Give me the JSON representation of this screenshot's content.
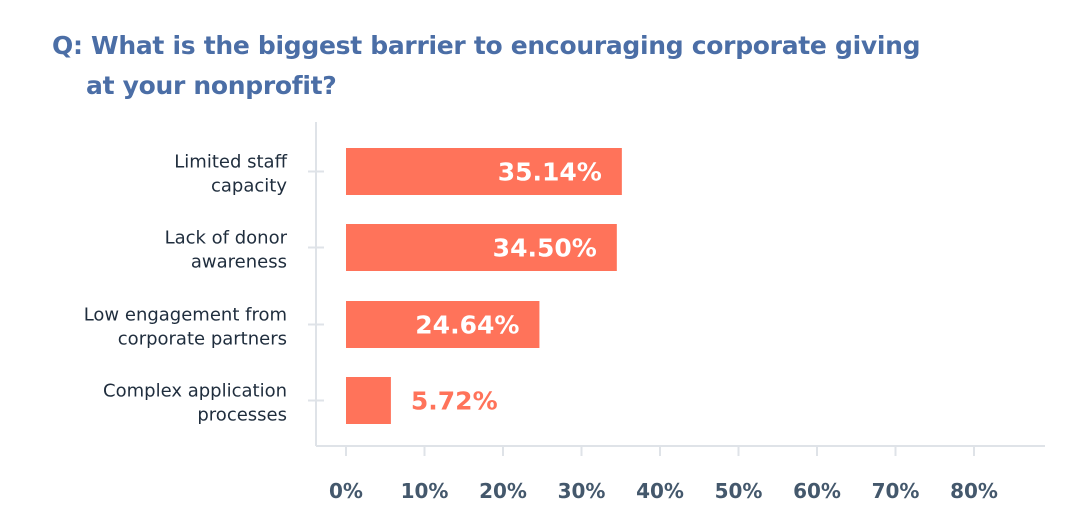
{
  "chart_data": {
    "type": "bar",
    "orientation": "horizontal",
    "title": "Q: What is the biggest barrier to encouraging corporate giving at your nonprofit?",
    "title_lines": [
      "Q: What is the biggest barrier to encouraging corporate giving",
      "at your nonprofit?"
    ],
    "categories": [
      [
        "Limited staff",
        "capacity"
      ],
      [
        "Lack of donor",
        "awareness"
      ],
      [
        "Low engagement from",
        "corporate partners"
      ],
      [
        "Complex application",
        "processes"
      ]
    ],
    "values": [
      35.14,
      34.5,
      24.64,
      5.72
    ],
    "data_labels": [
      "35.14%",
      "34.50%",
      "24.64%",
      "5.72%"
    ],
    "xlim": [
      0,
      80
    ],
    "x_ticks": [
      "0%",
      "10%",
      "20%",
      "30%",
      "40%",
      "50%",
      "60%",
      "70%",
      "80%"
    ],
    "grid": false,
    "colors": {
      "bar": "#ff735a",
      "title": "#4b6ea6",
      "tick_label": "#44586c",
      "category_label": "#1f2d3d",
      "axis": "#dfe3e8"
    }
  }
}
